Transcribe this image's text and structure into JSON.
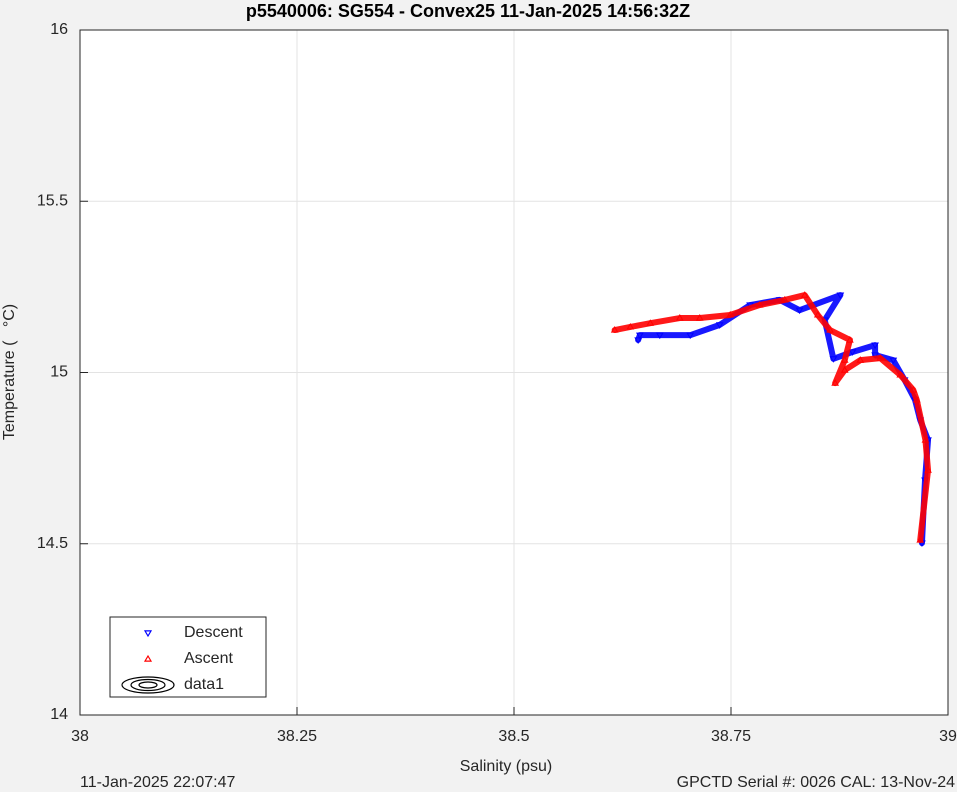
{
  "chart_data": {
    "type": "scatter",
    "title": "p5540006: SG554 - Convex25 11-Jan-2025 14:56:32Z",
    "xlabel": "Salinity (psu)",
    "ylabel": "Temperature (   °C)",
    "footer_left": "11-Jan-2025 22:07:47",
    "footer_right": "GPCTD Serial #: 0026 CAL: 13-Nov-24",
    "xlim": [
      38,
      39
    ],
    "ylim": [
      14,
      16
    ],
    "xticks": [
      38,
      38.25,
      38.5,
      38.75,
      39
    ],
    "yticks": [
      14,
      14.5,
      15,
      15.5,
      16
    ],
    "grid": true,
    "legend": "lower left",
    "series": [
      {
        "name": "Descent",
        "color": "#0000ff",
        "marker": "triangle-down",
        "x": [
          38.97,
          38.9735,
          38.977,
          38.968,
          38.962,
          38.95,
          38.937,
          38.916,
          38.916,
          38.89,
          38.868,
          38.858,
          38.876,
          38.829,
          38.806,
          38.772,
          38.737,
          38.703,
          38.668,
          38.645,
          38.643
        ],
        "values": [
          14.502,
          14.686,
          14.803,
          14.861,
          14.92,
          14.978,
          15.036,
          15.051,
          15.08,
          15.06,
          15.04,
          15.153,
          15.226,
          15.182,
          15.212,
          15.197,
          15.139,
          15.109,
          15.109,
          15.109,
          15.095
        ]
      },
      {
        "name": "Ascent",
        "color": "#ff0000",
        "marker": "triangle-up",
        "x": [
          38.968,
          38.977,
          38.974,
          38.964,
          38.96,
          38.945,
          38.922,
          38.899,
          38.881,
          38.87,
          38.881,
          38.887,
          38.864,
          38.85,
          38.835,
          38.812,
          38.783,
          38.749,
          38.714,
          38.691,
          38.657,
          38.634,
          38.616
        ],
        "values": [
          14.511,
          14.715,
          14.803,
          14.92,
          14.949,
          14.993,
          15.042,
          15.036,
          15.007,
          14.969,
          15.036,
          15.095,
          15.124,
          15.168,
          15.226,
          15.212,
          15.197,
          15.168,
          15.159,
          15.159,
          15.144,
          15.133,
          15.124
        ]
      },
      {
        "name": "data1",
        "color": "#000000",
        "marker": "contour",
        "x": [],
        "values": []
      }
    ]
  }
}
